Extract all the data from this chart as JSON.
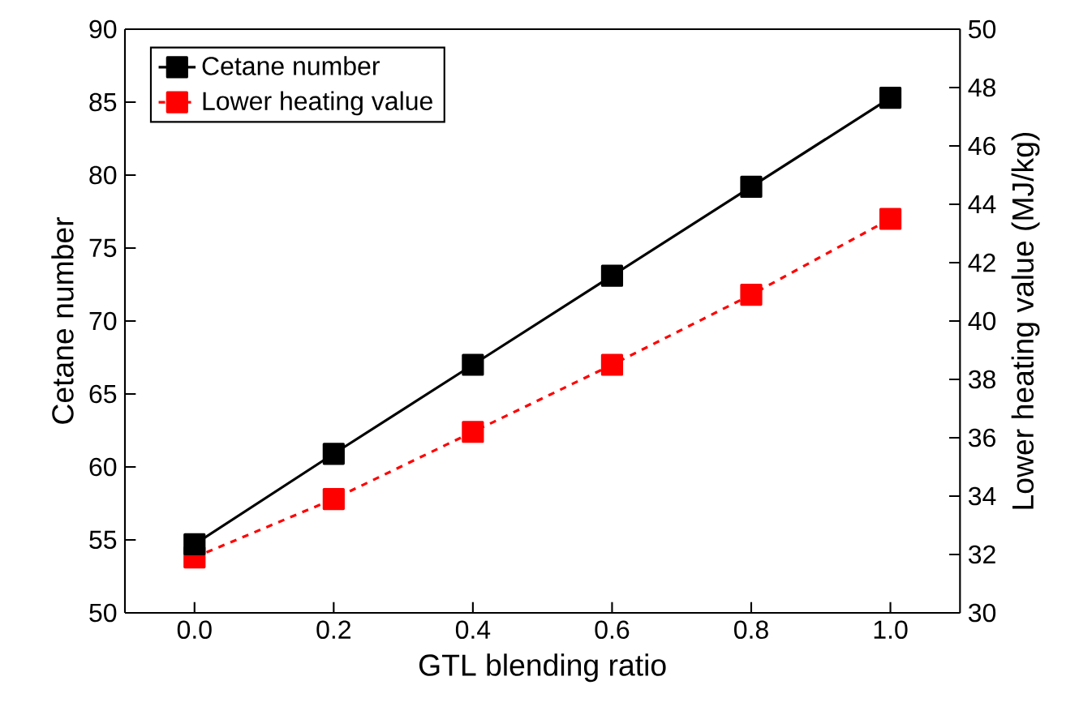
{
  "chart_data": {
    "type": "line",
    "xlabel": "GTL blending ratio",
    "ylabel": "Cetane number",
    "y2label": "Lower heating value (MJ/kg)",
    "x": [
      0.0,
      0.2,
      0.4,
      0.6,
      0.8,
      1.0
    ],
    "series": [
      {
        "name": "Cetane number",
        "color": "#000000",
        "values": [
          54.7,
          60.9,
          67.0,
          73.1,
          79.2,
          85.3
        ],
        "marker": "square",
        "line_style": "solid"
      },
      {
        "name": "Lower heating value",
        "color": "#ff0000",
        "values": [
          31.9,
          33.9,
          36.2,
          38.5,
          40.9,
          43.5
        ],
        "marker": "square",
        "line_style": "dashed",
        "axis": "y2"
      }
    ],
    "xlim": [
      -0.1,
      1.1
    ],
    "xticks": [
      {
        "value": 0.0,
        "label": "0.0"
      },
      {
        "value": 0.2,
        "label": "0.2"
      },
      {
        "value": 0.4,
        "label": "0.4"
      },
      {
        "value": 0.6,
        "label": "0.6"
      },
      {
        "value": 0.8,
        "label": "0.8"
      },
      {
        "value": 1.0,
        "label": "1.0"
      }
    ],
    "ylim": [
      50,
      90
    ],
    "yticks": [
      50,
      55,
      60,
      65,
      70,
      75,
      80,
      85,
      90
    ],
    "y2lim": [
      30,
      50
    ],
    "y2ticks": [
      30,
      32,
      34,
      36,
      38,
      40,
      42,
      44,
      46,
      48,
      50
    ],
    "legend": "top left"
  }
}
